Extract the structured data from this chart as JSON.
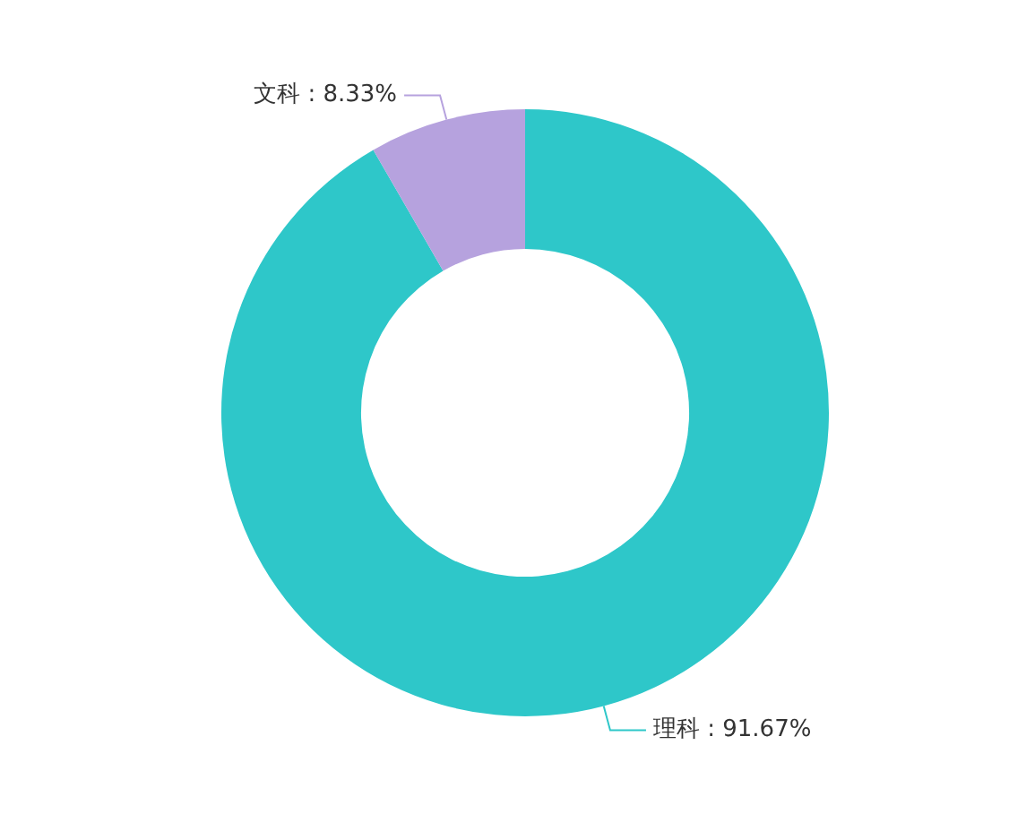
{
  "chart_data": {
    "type": "donut",
    "categories": [
      "理科",
      "文科"
    ],
    "values": [
      91.67,
      8.33
    ],
    "colors": [
      "#2ec7c9",
      "#b6a2de"
    ],
    "value_labels": [
      "91.67%",
      "8.33%"
    ],
    "legend": false
  }
}
